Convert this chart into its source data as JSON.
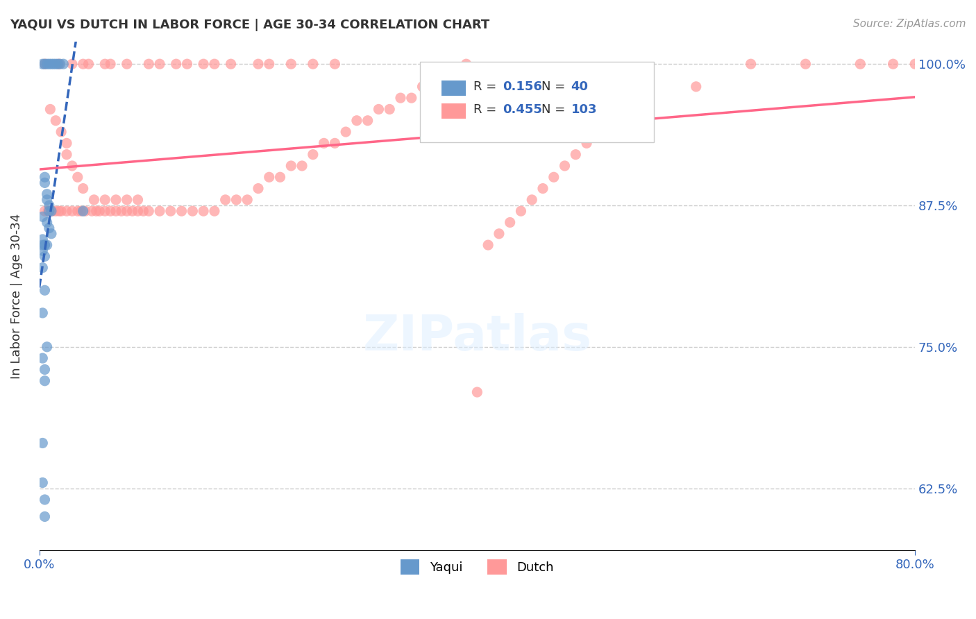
{
  "title": "YAQUI VS DUTCH IN LABOR FORCE | AGE 30-34 CORRELATION CHART",
  "source": "Source: ZipAtlas.com",
  "xlabel": "",
  "ylabel": "In Labor Force | Age 30-34",
  "x_tick_labels": [
    "0.0%",
    "80.0%"
  ],
  "y_tick_labels": [
    "62.5%",
    "75.0%",
    "87.5%",
    "100.0%"
  ],
  "x_min": 0.0,
  "x_max": 0.8,
  "y_min": 0.57,
  "y_max": 1.02,
  "legend_yaqui_R": "0.156",
  "legend_yaqui_N": "40",
  "legend_dutch_R": "0.455",
  "legend_dutch_N": "103",
  "yaqui_color": "#6699CC",
  "dutch_color": "#FF9999",
  "yaqui_line_color": "#3366BB",
  "dutch_line_color": "#FF6688",
  "watermark": "ZIPatlas",
  "yaqui_points_x": [
    0.003,
    0.005,
    0.007,
    0.009,
    0.011,
    0.013,
    0.015,
    0.017,
    0.019,
    0.022,
    0.005,
    0.005,
    0.007,
    0.007,
    0.009,
    0.009,
    0.011,
    0.003,
    0.007,
    0.009,
    0.011,
    0.003,
    0.005,
    0.005,
    0.007,
    0.003,
    0.003,
    0.005,
    0.003,
    0.005,
    0.003,
    0.007,
    0.003,
    0.005,
    0.005,
    0.003,
    0.003,
    0.005,
    0.005,
    0.04
  ],
  "yaqui_points_y": [
    1.0,
    1.0,
    1.0,
    1.0,
    1.0,
    1.0,
    1.0,
    1.0,
    1.0,
    1.0,
    0.9,
    0.895,
    0.885,
    0.88,
    0.875,
    0.87,
    0.87,
    0.865,
    0.86,
    0.855,
    0.85,
    0.845,
    0.84,
    0.84,
    0.84,
    0.84,
    0.835,
    0.83,
    0.82,
    0.8,
    0.78,
    0.75,
    0.74,
    0.73,
    0.72,
    0.665,
    0.63,
    0.615,
    0.6,
    0.87
  ],
  "dutch_points_x": [
    0.005,
    0.018,
    0.03,
    0.04,
    0.045,
    0.06,
    0.065,
    0.08,
    0.1,
    0.11,
    0.125,
    0.135,
    0.15,
    0.16,
    0.175,
    0.2,
    0.21,
    0.23,
    0.25,
    0.27,
    0.01,
    0.015,
    0.02,
    0.025,
    0.025,
    0.03,
    0.035,
    0.04,
    0.05,
    0.06,
    0.07,
    0.08,
    0.09,
    0.005,
    0.008,
    0.012,
    0.015,
    0.018,
    0.02,
    0.025,
    0.03,
    0.035,
    0.038,
    0.042,
    0.048,
    0.052,
    0.055,
    0.06,
    0.065,
    0.07,
    0.075,
    0.08,
    0.085,
    0.09,
    0.095,
    0.1,
    0.11,
    0.12,
    0.13,
    0.14,
    0.15,
    0.16,
    0.17,
    0.18,
    0.19,
    0.2,
    0.21,
    0.22,
    0.23,
    0.24,
    0.25,
    0.26,
    0.27,
    0.28,
    0.29,
    0.3,
    0.31,
    0.32,
    0.33,
    0.34,
    0.35,
    0.36,
    0.37,
    0.38,
    0.39,
    0.4,
    0.41,
    0.42,
    0.43,
    0.44,
    0.45,
    0.46,
    0.47,
    0.48,
    0.49,
    0.5,
    0.55,
    0.6,
    0.65,
    0.7,
    0.75,
    0.78,
    0.8
  ],
  "dutch_points_y": [
    1.0,
    1.0,
    1.0,
    1.0,
    1.0,
    1.0,
    1.0,
    1.0,
    1.0,
    1.0,
    1.0,
    1.0,
    1.0,
    1.0,
    1.0,
    1.0,
    1.0,
    1.0,
    1.0,
    1.0,
    0.96,
    0.95,
    0.94,
    0.93,
    0.92,
    0.91,
    0.9,
    0.89,
    0.88,
    0.88,
    0.88,
    0.88,
    0.88,
    0.87,
    0.87,
    0.87,
    0.87,
    0.87,
    0.87,
    0.87,
    0.87,
    0.87,
    0.87,
    0.87,
    0.87,
    0.87,
    0.87,
    0.87,
    0.87,
    0.87,
    0.87,
    0.87,
    0.87,
    0.87,
    0.87,
    0.87,
    0.87,
    0.87,
    0.87,
    0.87,
    0.87,
    0.87,
    0.88,
    0.88,
    0.88,
    0.89,
    0.9,
    0.9,
    0.91,
    0.91,
    0.92,
    0.93,
    0.93,
    0.94,
    0.95,
    0.95,
    0.96,
    0.96,
    0.97,
    0.97,
    0.98,
    0.98,
    0.99,
    0.99,
    1.0,
    0.71,
    0.84,
    0.85,
    0.86,
    0.87,
    0.88,
    0.89,
    0.9,
    0.91,
    0.92,
    0.93,
    0.96,
    0.98,
    1.0,
    1.0,
    1.0,
    1.0,
    1.0
  ]
}
